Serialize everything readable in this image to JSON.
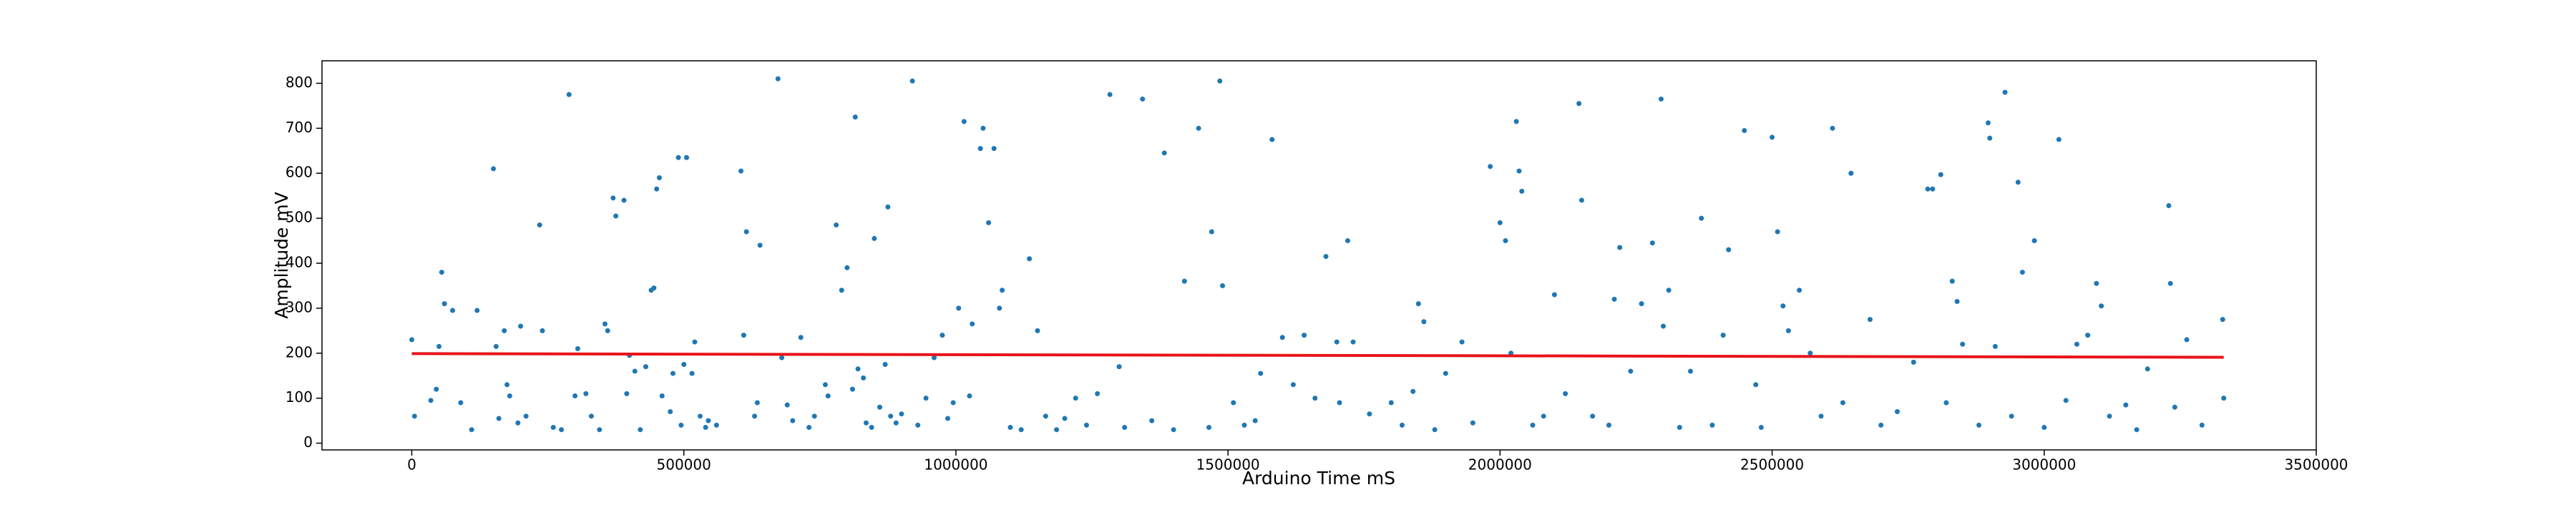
{
  "chart_data": {
    "type": "scatter",
    "xlabel": "Arduino Time mS",
    "ylabel": "Amplitude mV",
    "xlim": [
      -165000,
      3500000
    ],
    "ylim": [
      -15,
      850
    ],
    "xticks": [
      0,
      500000,
      1000000,
      1500000,
      2000000,
      2500000,
      3000000,
      3500000
    ],
    "yticks": [
      0,
      100,
      200,
      300,
      400,
      500,
      600,
      700,
      800
    ],
    "series": [
      {
        "type": "scatter",
        "color": "#1f77b4",
        "x": [
          0,
          5000,
          35000,
          45000,
          50000,
          55000,
          60000,
          75000,
          90000,
          110000,
          120000,
          150000,
          155000,
          160000,
          170000,
          175000,
          180000,
          195000,
          200000,
          210000,
          235000,
          240000,
          260000,
          275000,
          289000,
          300000,
          305000,
          320000,
          330000,
          345000,
          355000,
          360000,
          370000,
          375000,
          390000,
          395000,
          400000,
          410000,
          420000,
          430000,
          440000,
          445000,
          450000,
          455000,
          460000,
          475000,
          480000,
          490000,
          495000,
          500000,
          505000,
          515000,
          520000,
          530000,
          540000,
          545000,
          560000,
          605000,
          610000,
          615000,
          630000,
          635000,
          640000,
          673000,
          680000,
          690000,
          700000,
          715000,
          730000,
          740000,
          760000,
          765000,
          780000,
          790000,
          800000,
          810000,
          815000,
          820000,
          830000,
          835000,
          845000,
          850000,
          860000,
          870000,
          875000,
          880000,
          890000,
          900000,
          920000,
          930000,
          945000,
          960000,
          975000,
          985000,
          995000,
          1005000,
          1015000,
          1025000,
          1030000,
          1045000,
          1050000,
          1060000,
          1070000,
          1080000,
          1085000,
          1100000,
          1120000,
          1135000,
          1150000,
          1165000,
          1185000,
          1200000,
          1220000,
          1240000,
          1260000,
          1283000,
          1300000,
          1310000,
          1343000,
          1360000,
          1383000,
          1400000,
          1420000,
          1446000,
          1465000,
          1470000,
          1485000,
          1490000,
          1510000,
          1530000,
          1550000,
          1560000,
          1581000,
          1600000,
          1620000,
          1640000,
          1660000,
          1680000,
          1700000,
          1705000,
          1720000,
          1730000,
          1760000,
          1800000,
          1820000,
          1840000,
          1850000,
          1860000,
          1880000,
          1900000,
          1930000,
          1950000,
          1982000,
          2000000,
          2010000,
          2020000,
          2030000,
          2035000,
          2040000,
          2060000,
          2080000,
          2100000,
          2120000,
          2145000,
          2150000,
          2170000,
          2200000,
          2210000,
          2220000,
          2240000,
          2260000,
          2280000,
          2296000,
          2300000,
          2310000,
          2330000,
          2350000,
          2370000,
          2390000,
          2410000,
          2420000,
          2449000,
          2470000,
          2480000,
          2500000,
          2510000,
          2520000,
          2530000,
          2550000,
          2570000,
          2590000,
          2611000,
          2630000,
          2645000,
          2680000,
          2700000,
          2730000,
          2760000,
          2786000,
          2795000,
          2810000,
          2820000,
          2831000,
          2840000,
          2850000,
          2880000,
          2897000,
          2900000,
          2910000,
          2928000,
          2940000,
          2952000,
          2960000,
          2982000,
          3000000,
          3027000,
          3040000,
          3060000,
          3080000,
          3096000,
          3105000,
          3120000,
          3150000,
          3170000,
          3190000,
          3229000,
          3232000,
          3240000,
          3262000,
          3290000,
          3328000,
          3330000
        ],
        "values": [
          230,
          60,
          95,
          120,
          215,
          380,
          310,
          295,
          90,
          30,
          295,
          610,
          215,
          55,
          250,
          130,
          105,
          45,
          260,
          60,
          485,
          250,
          35,
          30,
          775,
          105,
          210,
          110,
          60,
          30,
          265,
          250,
          545,
          505,
          540,
          110,
          195,
          160,
          30,
          170,
          340,
          345,
          565,
          590,
          105,
          70,
          155,
          635,
          40,
          175,
          635,
          155,
          225,
          60,
          35,
          50,
          40,
          605,
          240,
          470,
          60,
          90,
          440,
          810,
          190,
          85,
          50,
          235,
          35,
          60,
          130,
          105,
          485,
          340,
          390,
          120,
          725,
          165,
          145,
          45,
          35,
          455,
          80,
          175,
          525,
          60,
          45,
          65,
          805,
          40,
          100,
          190,
          240,
          55,
          90,
          300,
          715,
          105,
          265,
          655,
          700,
          490,
          655,
          300,
          340,
          35,
          30,
          410,
          250,
          60,
          30,
          55,
          100,
          40,
          110,
          775,
          170,
          35,
          765,
          50,
          645,
          30,
          360,
          700,
          35,
          470,
          805,
          350,
          90,
          40,
          50,
          155,
          675,
          235,
          130,
          240,
          100,
          415,
          225,
          90,
          450,
          225,
          65,
          90,
          40,
          115,
          310,
          270,
          30,
          155,
          225,
          45,
          615,
          490,
          450,
          200,
          715,
          605,
          560,
          40,
          60,
          330,
          110,
          755,
          540,
          60,
          40,
          320,
          435,
          160,
          310,
          445,
          765,
          260,
          340,
          35,
          160,
          500,
          40,
          240,
          430,
          695,
          130,
          35,
          680,
          470,
          305,
          250,
          340,
          200,
          60,
          700,
          90,
          600,
          275,
          40,
          70,
          180,
          565,
          565,
          597,
          90,
          360,
          315,
          220,
          40,
          712,
          678,
          215,
          780,
          60,
          580,
          380,
          450,
          35,
          675,
          95,
          220,
          240,
          355,
          305,
          60,
          85,
          30,
          165,
          528,
          355,
          80,
          230,
          40,
          275,
          100
        ]
      },
      {
        "type": "line",
        "color": "#e8141a",
        "x": [
          0,
          3330000
        ],
        "values": [
          199,
          191
        ]
      }
    ]
  }
}
